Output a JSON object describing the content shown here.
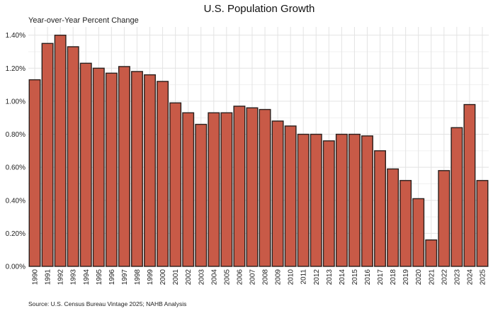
{
  "chart_data": {
    "type": "bar",
    "title": "U.S. Population Growth",
    "subtitle": "Year-over-Year Percent Change",
    "source": "Source: U.S. Census Bureau Vintage 2025; NAHB Analysis",
    "categories": [
      "1990",
      "1991",
      "1992",
      "1993",
      "1994",
      "1995",
      "1996",
      "1997",
      "1998",
      "1999",
      "2000",
      "2001",
      "2002",
      "2003",
      "2004",
      "2005",
      "2006",
      "2007",
      "2008",
      "2009",
      "2010",
      "2011",
      "2012",
      "2013",
      "2014",
      "2015",
      "2016",
      "2017",
      "2018",
      "2019",
      "2020",
      "2021",
      "2022",
      "2023",
      "2024",
      "2025"
    ],
    "values": [
      1.13,
      1.35,
      1.4,
      1.33,
      1.23,
      1.2,
      1.17,
      1.21,
      1.18,
      1.16,
      1.12,
      0.99,
      0.93,
      0.86,
      0.93,
      0.93,
      0.97,
      0.96,
      0.95,
      0.88,
      0.85,
      0.8,
      0.8,
      0.76,
      0.8,
      0.8,
      0.79,
      0.7,
      0.59,
      0.52,
      0.41,
      0.16,
      0.58,
      0.84,
      0.98,
      0.52
    ],
    "ylim": [
      0,
      1.45
    ],
    "yticks": [
      0,
      0.2,
      0.4,
      0.6,
      0.8,
      1.0,
      1.2,
      1.4
    ],
    "ytick_labels": [
      "0.00%",
      "0.20%",
      "0.40%",
      "0.60%",
      "0.80%",
      "1.00%",
      "1.20%",
      "1.40%"
    ],
    "bar_color": "#c85a47",
    "bar_edge_color": "#2a1f1c",
    "grid": true,
    "legend": "none"
  }
}
